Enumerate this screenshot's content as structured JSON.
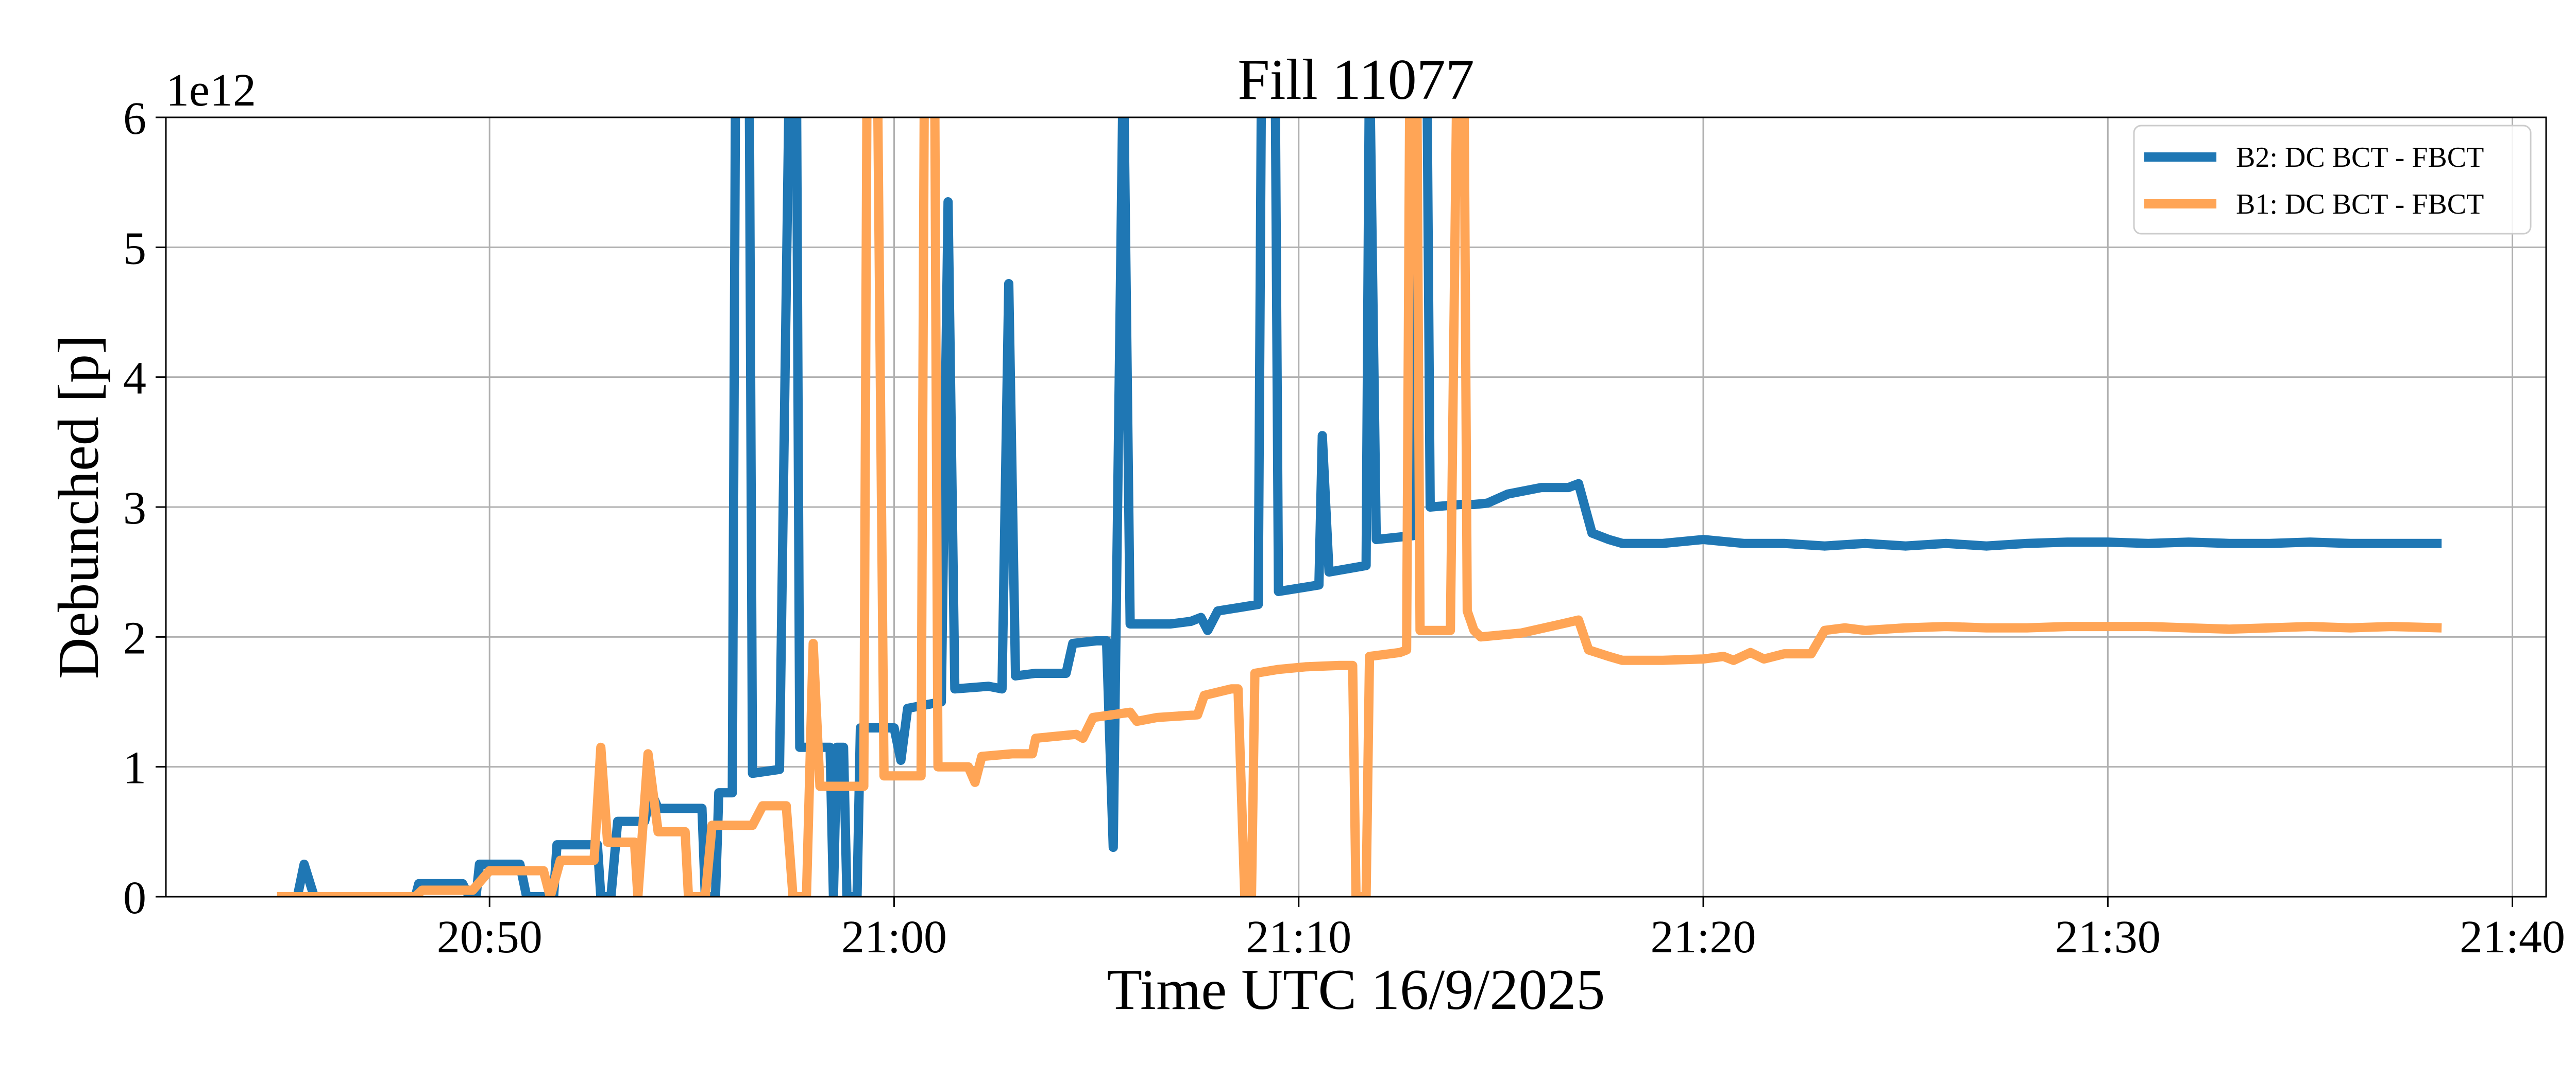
{
  "chart_data": {
    "type": "line",
    "title": "Fill 11077",
    "xlabel": "Time UTC 16/9/2025",
    "ylabel": "Debunched [p]",
    "y_offset_label": "1e12",
    "xlim": [
      "20:42:00",
      "21:40:50"
    ],
    "ylim": [
      0,
      6
    ],
    "x_ticks": [
      "20:50",
      "21:00",
      "21:10",
      "21:20",
      "21:30",
      "21:40"
    ],
    "y_ticks": [
      0,
      1,
      2,
      3,
      4,
      5,
      6
    ],
    "grid": true,
    "legend_position": "top-right",
    "series": [
      {
        "name": "B2: DC BCT - FBCT",
        "color": "#1f77b4",
        "points": [
          [
            "20:44:45",
            0
          ],
          [
            "20:45:15",
            0
          ],
          [
            "20:45:25",
            0.25
          ],
          [
            "20:45:40",
            0
          ],
          [
            "20:46:30",
            0
          ],
          [
            "20:47:30",
            0
          ],
          [
            "20:48:10",
            0
          ],
          [
            "20:48:15",
            0.1
          ],
          [
            "20:49:20",
            0.1
          ],
          [
            "20:49:30",
            0
          ],
          [
            "20:49:40",
            0
          ],
          [
            "20:49:45",
            0.25
          ],
          [
            "20:50:45",
            0.25
          ],
          [
            "20:50:55",
            0
          ],
          [
            "20:51:35",
            0
          ],
          [
            "20:51:40",
            0.4
          ],
          [
            "20:52:40",
            0.4
          ],
          [
            "20:52:45",
            0
          ],
          [
            "20:53:00",
            0
          ],
          [
            "20:53:10",
            0.58
          ],
          [
            "20:53:50",
            0.58
          ],
          [
            "20:54:00",
            0.8
          ],
          [
            "20:54:10",
            0.68
          ],
          [
            "20:55:15",
            0.68
          ],
          [
            "20:55:20",
            0
          ],
          [
            "20:55:35",
            0
          ],
          [
            "20:55:40",
            0.8
          ],
          [
            "20:56:00",
            0.8
          ],
          [
            "20:56:05",
            6.5
          ],
          [
            "20:56:25",
            6.5
          ],
          [
            "20:56:30",
            0.95
          ],
          [
            "20:57:10",
            0.98
          ],
          [
            "20:57:25",
            6.5
          ],
          [
            "20:57:35",
            6.5
          ],
          [
            "20:57:40",
            1.15
          ],
          [
            "20:58:25",
            1.15
          ],
          [
            "20:58:30",
            0
          ],
          [
            "20:58:35",
            1.15
          ],
          [
            "20:58:45",
            1.15
          ],
          [
            "20:58:50",
            0
          ],
          [
            "20:59:05",
            0
          ],
          [
            "20:59:10",
            1.3
          ],
          [
            "20:59:50",
            1.3
          ],
          [
            "21:00:00",
            1.3
          ],
          [
            "21:00:10",
            1.05
          ],
          [
            "21:00:20",
            1.45
          ],
          [
            "21:01:10",
            1.5
          ],
          [
            "21:01:20",
            5.35
          ],
          [
            "21:01:30",
            1.6
          ],
          [
            "21:02:20",
            1.62
          ],
          [
            "21:02:40",
            1.6
          ],
          [
            "21:02:50",
            4.72
          ],
          [
            "21:03:00",
            1.7
          ],
          [
            "21:03:30",
            1.72
          ],
          [
            "21:04:15",
            1.72
          ],
          [
            "21:04:25",
            1.95
          ],
          [
            "21:05:00",
            1.97
          ],
          [
            "21:05:15",
            1.97
          ],
          [
            "21:05:25",
            0.38
          ],
          [
            "21:05:40",
            6.5
          ],
          [
            "21:05:50",
            2.1
          ],
          [
            "21:06:50",
            2.1
          ],
          [
            "21:07:20",
            2.12
          ],
          [
            "21:07:35",
            2.15
          ],
          [
            "21:07:45",
            2.05
          ],
          [
            "21:08:00",
            2.2
          ],
          [
            "21:09:00",
            2.25
          ],
          [
            "21:09:05",
            6.5
          ],
          [
            "21:09:25",
            6.5
          ],
          [
            "21:09:30",
            2.35
          ],
          [
            "21:10:30",
            2.4
          ],
          [
            "21:10:35",
            3.55
          ],
          [
            "21:10:45",
            2.5
          ],
          [
            "21:11:40",
            2.55
          ],
          [
            "21:11:45",
            6.5
          ],
          [
            "21:11:55",
            2.75
          ],
          [
            "21:12:50",
            2.78
          ],
          [
            "21:12:55",
            6.5
          ],
          [
            "21:13:10",
            6.5
          ],
          [
            "21:13:15",
            3.0
          ],
          [
            "21:14:00",
            3.02
          ],
          [
            "21:14:20",
            3.02
          ],
          [
            "21:14:40",
            3.03
          ],
          [
            "21:15:10",
            3.1
          ],
          [
            "21:16:00",
            3.15
          ],
          [
            "21:16:40",
            3.15
          ],
          [
            "21:16:55",
            3.18
          ],
          [
            "21:17:15",
            2.8
          ],
          [
            "21:17:40",
            2.75
          ],
          [
            "21:18:00",
            2.72
          ],
          [
            "21:19:00",
            2.72
          ],
          [
            "21:20:00",
            2.75
          ],
          [
            "21:21:00",
            2.72
          ],
          [
            "21:22:00",
            2.72
          ],
          [
            "21:23:00",
            2.7
          ],
          [
            "21:24:00",
            2.72
          ],
          [
            "21:25:00",
            2.7
          ],
          [
            "21:26:00",
            2.72
          ],
          [
            "21:27:00",
            2.7
          ],
          [
            "21:28:00",
            2.72
          ],
          [
            "21:29:00",
            2.73
          ],
          [
            "21:30:00",
            2.73
          ],
          [
            "21:31:00",
            2.72
          ],
          [
            "21:32:00",
            2.73
          ],
          [
            "21:33:00",
            2.72
          ],
          [
            "21:34:00",
            2.72
          ],
          [
            "21:35:00",
            2.73
          ],
          [
            "21:36:00",
            2.72
          ],
          [
            "21:37:00",
            2.72
          ],
          [
            "21:38:15",
            2.72
          ]
        ]
      },
      {
        "name": "B1: DC BCT - FBCT",
        "color": "#ffa556",
        "points": [
          [
            "20:44:45",
            0
          ],
          [
            "20:46:00",
            0
          ],
          [
            "20:48:10",
            0
          ],
          [
            "20:48:20",
            0.05
          ],
          [
            "20:49:20",
            0.05
          ],
          [
            "20:49:35",
            0.05
          ],
          [
            "20:50:00",
            0.2
          ],
          [
            "20:51:20",
            0.2
          ],
          [
            "20:51:30",
            0
          ],
          [
            "20:51:45",
            0.28
          ],
          [
            "20:52:35",
            0.28
          ],
          [
            "20:52:45",
            1.15
          ],
          [
            "20:52:55",
            0.42
          ],
          [
            "20:53:35",
            0.42
          ],
          [
            "20:53:40",
            0
          ],
          [
            "20:53:55",
            1.1
          ],
          [
            "20:54:10",
            0.5
          ],
          [
            "20:54:50",
            0.5
          ],
          [
            "20:54:55",
            0
          ],
          [
            "20:55:20",
            0
          ],
          [
            "20:55:30",
            0.55
          ],
          [
            "20:56:30",
            0.55
          ],
          [
            "20:56:45",
            0.7
          ],
          [
            "20:57:20",
            0.7
          ],
          [
            "20:57:30",
            0
          ],
          [
            "20:57:50",
            0
          ],
          [
            "20:58:00",
            1.95
          ],
          [
            "20:58:10",
            0.85
          ],
          [
            "20:58:45",
            0.85
          ],
          [
            "20:59:15",
            0.85
          ],
          [
            "20:59:20",
            6.5
          ],
          [
            "20:59:35",
            6.5
          ],
          [
            "20:59:45",
            0.93
          ],
          [
            "21:00:40",
            0.93
          ],
          [
            "21:00:45",
            6.5
          ],
          [
            "21:01:00",
            6.5
          ],
          [
            "21:01:05",
            1.0
          ],
          [
            "21:01:50",
            1.0
          ],
          [
            "21:02:00",
            0.88
          ],
          [
            "21:02:10",
            1.08
          ],
          [
            "21:02:55",
            1.1
          ],
          [
            "21:03:25",
            1.1
          ],
          [
            "21:03:30",
            1.22
          ],
          [
            "21:04:30",
            1.25
          ],
          [
            "21:04:40",
            1.22
          ],
          [
            "21:04:55",
            1.38
          ],
          [
            "21:05:50",
            1.42
          ],
          [
            "21:06:00",
            1.35
          ],
          [
            "21:06:30",
            1.38
          ],
          [
            "21:07:30",
            1.4
          ],
          [
            "21:07:40",
            1.55
          ],
          [
            "21:08:20",
            1.6
          ],
          [
            "21:08:30",
            1.6
          ],
          [
            "21:08:40",
            0
          ],
          [
            "21:08:50",
            0
          ],
          [
            "21:08:55",
            1.72
          ],
          [
            "21:09:30",
            1.75
          ],
          [
            "21:10:10",
            1.77
          ],
          [
            "21:11:00",
            1.78
          ],
          [
            "21:11:20",
            1.78
          ],
          [
            "21:11:25",
            0
          ],
          [
            "21:11:40",
            0
          ],
          [
            "21:11:45",
            1.85
          ],
          [
            "21:12:30",
            1.88
          ],
          [
            "21:12:40",
            1.9
          ],
          [
            "21:12:45",
            6.5
          ],
          [
            "21:12:55",
            6.5
          ],
          [
            "21:13:00",
            2.05
          ],
          [
            "21:13:45",
            2.05
          ],
          [
            "21:13:55",
            6.5
          ],
          [
            "21:14:05",
            6.5
          ],
          [
            "21:14:10",
            2.2
          ],
          [
            "21:14:20",
            2.05
          ],
          [
            "21:14:30",
            2.0
          ],
          [
            "21:15:30",
            2.03
          ],
          [
            "21:16:30",
            2.1
          ],
          [
            "21:16:55",
            2.13
          ],
          [
            "21:17:10",
            1.9
          ],
          [
            "21:17:40",
            1.85
          ],
          [
            "21:18:00",
            1.82
          ],
          [
            "21:19:00",
            1.82
          ],
          [
            "21:20:00",
            1.83
          ],
          [
            "21:20:30",
            1.85
          ],
          [
            "21:20:45",
            1.82
          ],
          [
            "21:21:10",
            1.88
          ],
          [
            "21:21:30",
            1.83
          ],
          [
            "21:22:00",
            1.87
          ],
          [
            "21:22:40",
            1.87
          ],
          [
            "21:23:00",
            2.05
          ],
          [
            "21:23:30",
            2.07
          ],
          [
            "21:24:00",
            2.05
          ],
          [
            "21:25:00",
            2.07
          ],
          [
            "21:26:00",
            2.08
          ],
          [
            "21:27:00",
            2.07
          ],
          [
            "21:28:00",
            2.07
          ],
          [
            "21:29:00",
            2.08
          ],
          [
            "21:30:00",
            2.08
          ],
          [
            "21:31:00",
            2.08
          ],
          [
            "21:32:00",
            2.07
          ],
          [
            "21:33:00",
            2.06
          ],
          [
            "21:34:00",
            2.07
          ],
          [
            "21:35:00",
            2.08
          ],
          [
            "21:36:00",
            2.07
          ],
          [
            "21:37:00",
            2.08
          ],
          [
            "21:38:15",
            2.07
          ]
        ]
      }
    ]
  }
}
